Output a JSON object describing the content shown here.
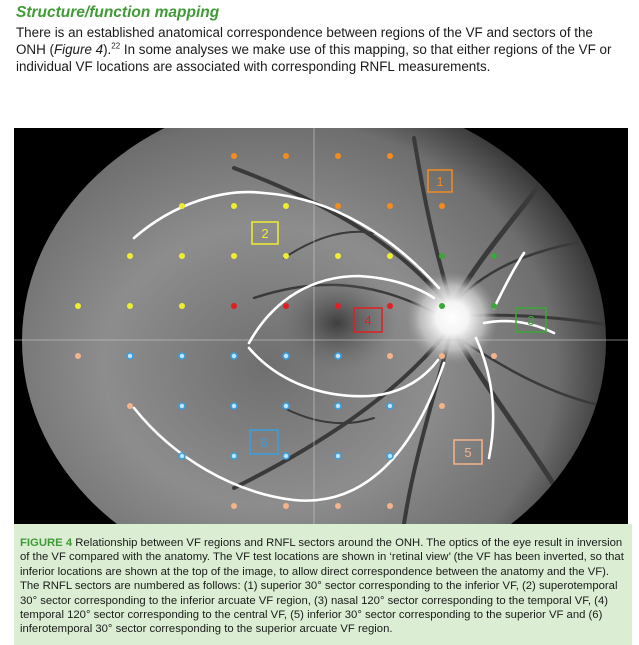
{
  "section": {
    "heading": "Structure/function mapping",
    "para_1": "There is an established anatomical correspondence between regions of the VF and sectors of the ONH (",
    "para_fig_ref": "Figure 4",
    "para_2": ").",
    "para_ref_number": "22",
    "para_3": " In some analyses we make use of this mapping, so that either regions of the VF or individual VF locations are associated with corresponding RNFL measurements."
  },
  "figure": {
    "sector_labels": {
      "s1": "1",
      "s2": "2",
      "s3": "3",
      "s4": "4",
      "s5": "5",
      "s6": "6"
    },
    "colors": {
      "sector_1": "#f28c1e",
      "sector_2": "#eeee30",
      "sector_3": "#3aa836",
      "sector_4": "#e02020",
      "sector_5": "#f4b48a",
      "sector_6": "#3a9edc"
    }
  },
  "caption": {
    "label": "FIGURE 4",
    "text": "Relationship between VF regions and RNFL sectors around the ONH. The optics of the eye result in inversion of the VF compared with the anatomy. The VF test locations are shown in ‘retinal view’ (the VF has been inverted, so that inferior locations are shown at the top of the image, to allow direct correspondence between the anatomy and the VF). The RNFL sectors are numbered as follows: (1) superior 30° sector corresponding to the inferior VF, (2) superotemporal 30° sector corresponding to the inferior arcuate VF region, (3) nasal 120° sector corresponding to the temporal VF, (4) temporal 120° sector corresponding to the central VF, (5) inferior 30° sector corresponding to the superior VF and (6) inferotemporal 30° sector corresponding to the superior arcuate VF region."
  }
}
